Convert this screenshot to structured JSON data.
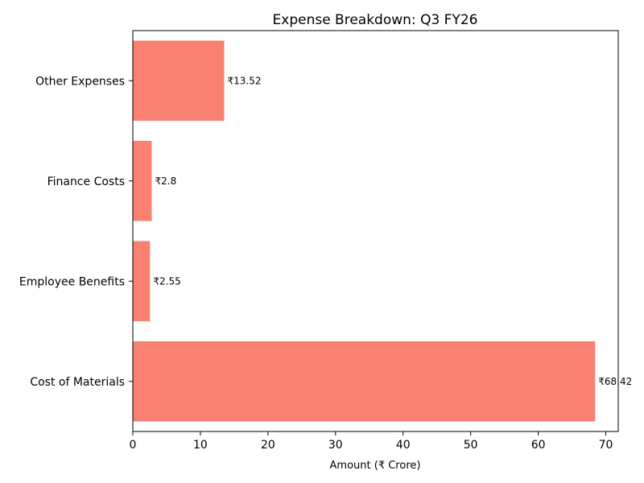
{
  "chart_data": {
    "type": "bar",
    "orientation": "horizontal",
    "title": "Expense Breakdown: Q3 FY26",
    "xlabel": "Amount (₹ Crore)",
    "ylabel": "",
    "categories": [
      "Cost of Materials",
      "Employee Benefits",
      "Finance Costs",
      "Other Expenses"
    ],
    "values": [
      68.42,
      2.55,
      2.8,
      13.52
    ],
    "data_labels": [
      "₹68.42",
      "₹2.55",
      "₹2.8",
      "₹13.52"
    ],
    "xlim": [
      0,
      71.84
    ],
    "xticks": [
      0,
      10,
      20,
      30,
      40,
      50,
      60,
      70
    ],
    "bar_color": "#fa8072",
    "grid": false,
    "legend": "none"
  }
}
